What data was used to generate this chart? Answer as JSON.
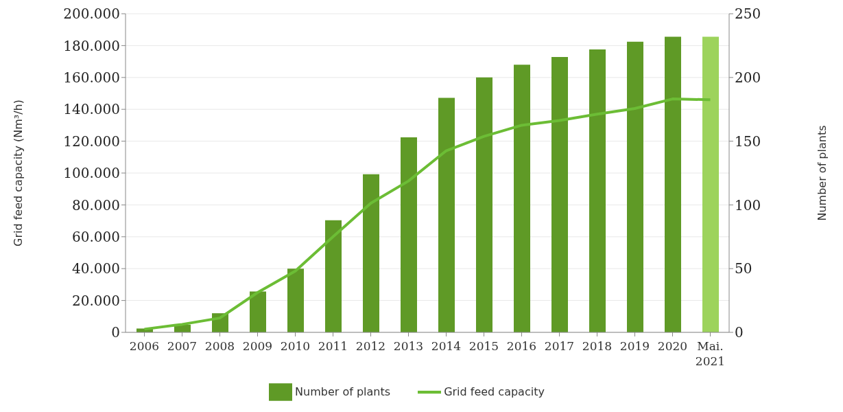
{
  "chart_data": {
    "type": "bar",
    "categories": [
      "2006",
      "2007",
      "2008",
      "2009",
      "2010",
      "2011",
      "2012",
      "2013",
      "2014",
      "2015",
      "2016",
      "2017",
      "2018",
      "2019",
      "2020",
      "Mai. 2021"
    ],
    "series": [
      {
        "name": "Number of plants",
        "axis": "y2",
        "color": "#5f9a26",
        "colors": [
          "#5f9a26",
          "#5f9a26",
          "#5f9a26",
          "#5f9a26",
          "#5f9a26",
          "#5f9a26",
          "#5f9a26",
          "#5f9a26",
          "#5f9a26",
          "#5f9a26",
          "#5f9a26",
          "#5f9a26",
          "#5f9a26",
          "#5f9a26",
          "#5f9a26",
          "#9dd35c"
        ],
        "values": [
          3,
          6,
          15,
          32,
          50,
          88,
          124,
          153,
          184,
          200,
          210,
          216,
          222,
          228,
          232,
          232
        ]
      },
      {
        "name": "Grid feed capacity",
        "type": "line",
        "color": "#6cbd35",
        "values": [
          2000,
          5000,
          9000,
          25000,
          38500,
          60000,
          81000,
          95000,
          114000,
          123000,
          130000,
          133000,
          137000,
          140500,
          146500,
          146000
        ]
      }
    ],
    "ylabel": "Grid feed capacity (Nm³/h)",
    "y2label": "Number of plants",
    "ylim": [
      0,
      200000
    ],
    "yticks": [
      {
        "value": 0,
        "label": "0"
      },
      {
        "value": 20000,
        "label": "20.000"
      },
      {
        "value": 40000,
        "label": "40.000"
      },
      {
        "value": 60000,
        "label": "60.000"
      },
      {
        "value": 80000,
        "label": "80.000"
      },
      {
        "value": 100000,
        "label": "100.000"
      },
      {
        "value": 120000,
        "label": "120.000"
      },
      {
        "value": 140000,
        "label": "140.000"
      },
      {
        "value": 160000,
        "label": "160.000"
      },
      {
        "value": 180000,
        "label": "180.000"
      },
      {
        "value": 200000,
        "label": "200.000"
      }
    ],
    "y2lim": [
      0,
      250
    ],
    "y2ticks": [
      0,
      50,
      100,
      150,
      200,
      250
    ],
    "grid": "y",
    "legend": "bottom",
    "marker": "none",
    "line_style": "solid"
  }
}
